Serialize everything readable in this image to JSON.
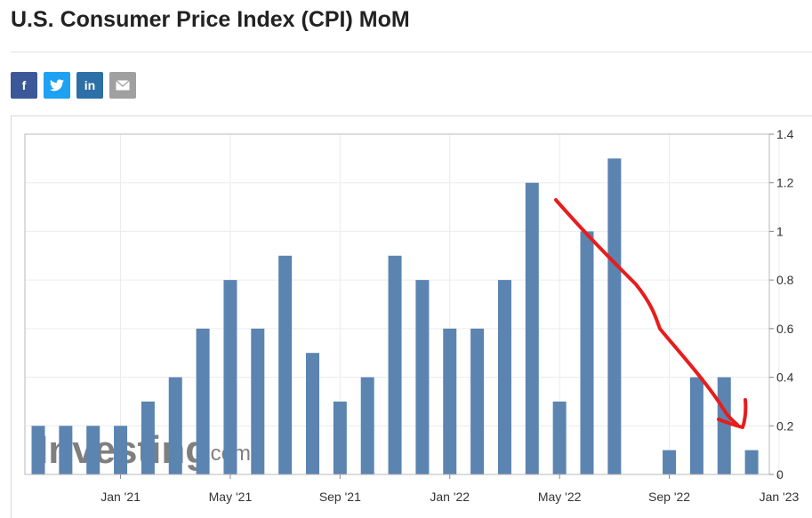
{
  "header": {
    "title": "U.S. Consumer Price Index (CPI) MoM"
  },
  "share_buttons": [
    {
      "label": "f",
      "icon": "facebook-icon",
      "color": "#3b5998"
    },
    {
      "label": "t",
      "icon": "twitter-icon",
      "color": "#1da1f2"
    },
    {
      "label": "in",
      "icon": "linkedin-icon",
      "color": "#2d6fa7"
    },
    {
      "label": "✉",
      "icon": "email-icon",
      "color": "#a0a0a0"
    }
  ],
  "watermark": {
    "text": "Investing",
    "suffix": ".com"
  },
  "chart_data": {
    "type": "bar",
    "title": "U.S. Consumer Price Index (CPI) MoM",
    "xlabel": "",
    "ylabel": "",
    "x_tick_labels": [
      "Jan '21",
      "May '21",
      "Sep '21",
      "Jan '22",
      "May '22",
      "Sep '22",
      "Jan '23"
    ],
    "y_tick_labels": [
      "0",
      "0.2",
      "0.4",
      "0.6",
      "0.8",
      "1",
      "1.2",
      "1.4"
    ],
    "ylim": [
      0,
      1.4
    ],
    "y_axis_position": "right",
    "grid": true,
    "bar_color": "#5b84b1",
    "categories": [
      "Oct '20",
      "Nov '20",
      "Dec '20",
      "Jan '21",
      "Feb '21",
      "Mar '21",
      "Apr '21",
      "May '21",
      "Jun '21",
      "Jul '21",
      "Aug '21",
      "Sep '21",
      "Oct '21",
      "Nov '21",
      "Dec '21",
      "Jan '22",
      "Feb '22",
      "Mar '22",
      "Apr '22",
      "May '22",
      "Jun '22",
      "Jul '22",
      "Aug '22",
      "Sep '22",
      "Oct '22",
      "Nov '22",
      "Dec '22"
    ],
    "values": [
      0.2,
      0.2,
      0.2,
      0.2,
      0.3,
      0.4,
      0.6,
      0.8,
      0.6,
      0.9,
      0.5,
      0.3,
      0.4,
      0.9,
      0.8,
      0.6,
      0.6,
      0.8,
      1.2,
      0.3,
      1.0,
      1.3,
      0.0,
      0.1,
      0.4,
      0.4,
      0.1
    ],
    "annotation": {
      "type": "freehand-arrow",
      "color": "#e81c1c"
    }
  }
}
